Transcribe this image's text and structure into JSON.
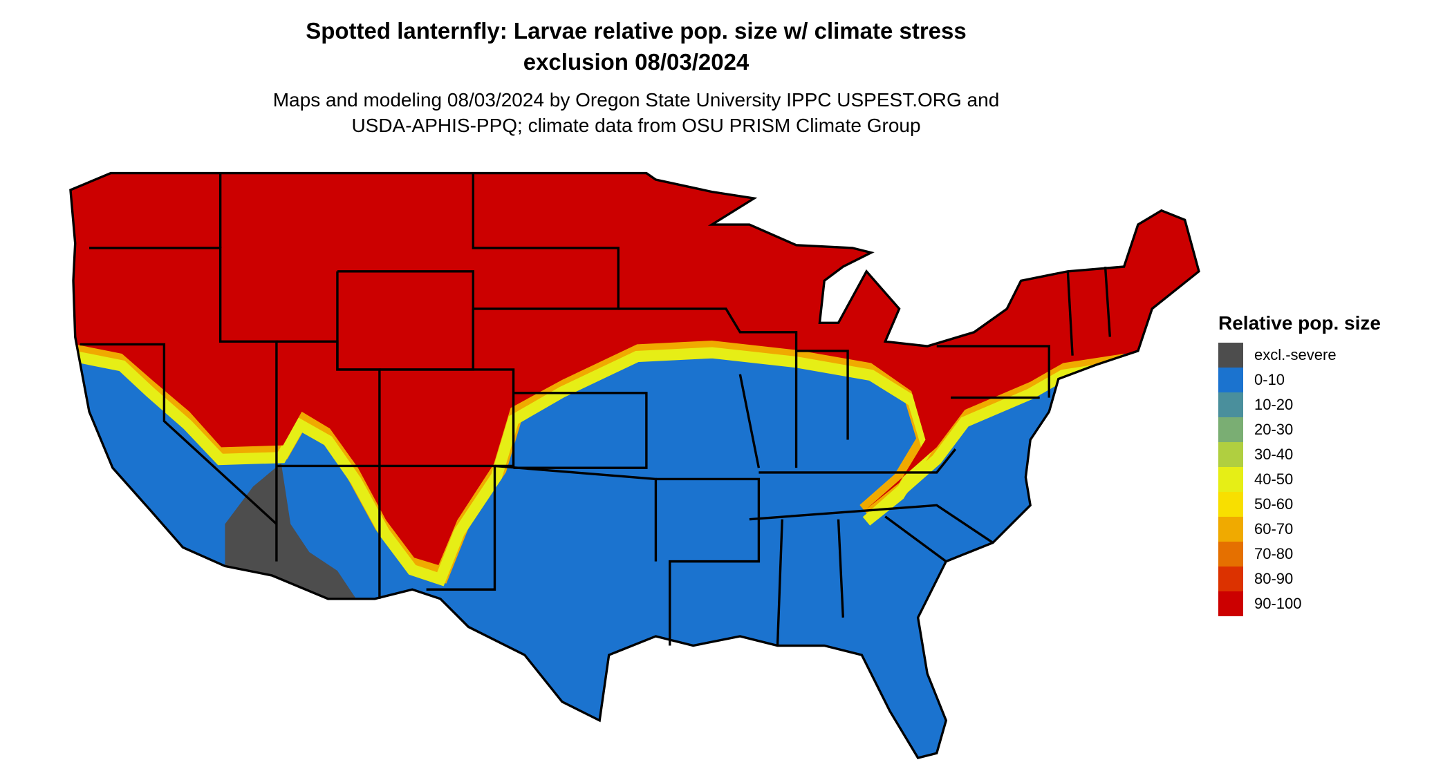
{
  "title": {
    "line1": "Spotted lanternfly: Larvae relative pop. size w/ climate stress",
    "line2": "exclusion 08/03/2024"
  },
  "subtitle": {
    "line1": "Maps and modeling 08/03/2024 by Oregon State University IPPC USPEST.ORG and",
    "line2": "USDA-APHIS-PPQ; climate data from OSU PRISM Climate Group"
  },
  "legend": {
    "title": "Relative pop. size",
    "items": [
      {
        "label": "excl.-severe",
        "color": "#4d4d4d"
      },
      {
        "label": "0-10",
        "color": "#1b73cf"
      },
      {
        "label": "10-20",
        "color": "#4a8f9c"
      },
      {
        "label": "20-30",
        "color": "#7aae73"
      },
      {
        "label": "30-40",
        "color": "#b0cf40"
      },
      {
        "label": "40-50",
        "color": "#e6ee16"
      },
      {
        "label": "50-60",
        "color": "#f8df00"
      },
      {
        "label": "60-70",
        "color": "#f0aa00"
      },
      {
        "label": "70-80",
        "color": "#e57000"
      },
      {
        "label": "80-90",
        "color": "#dc3200"
      },
      {
        "label": "90-100",
        "color": "#cc0000"
      }
    ]
  }
}
